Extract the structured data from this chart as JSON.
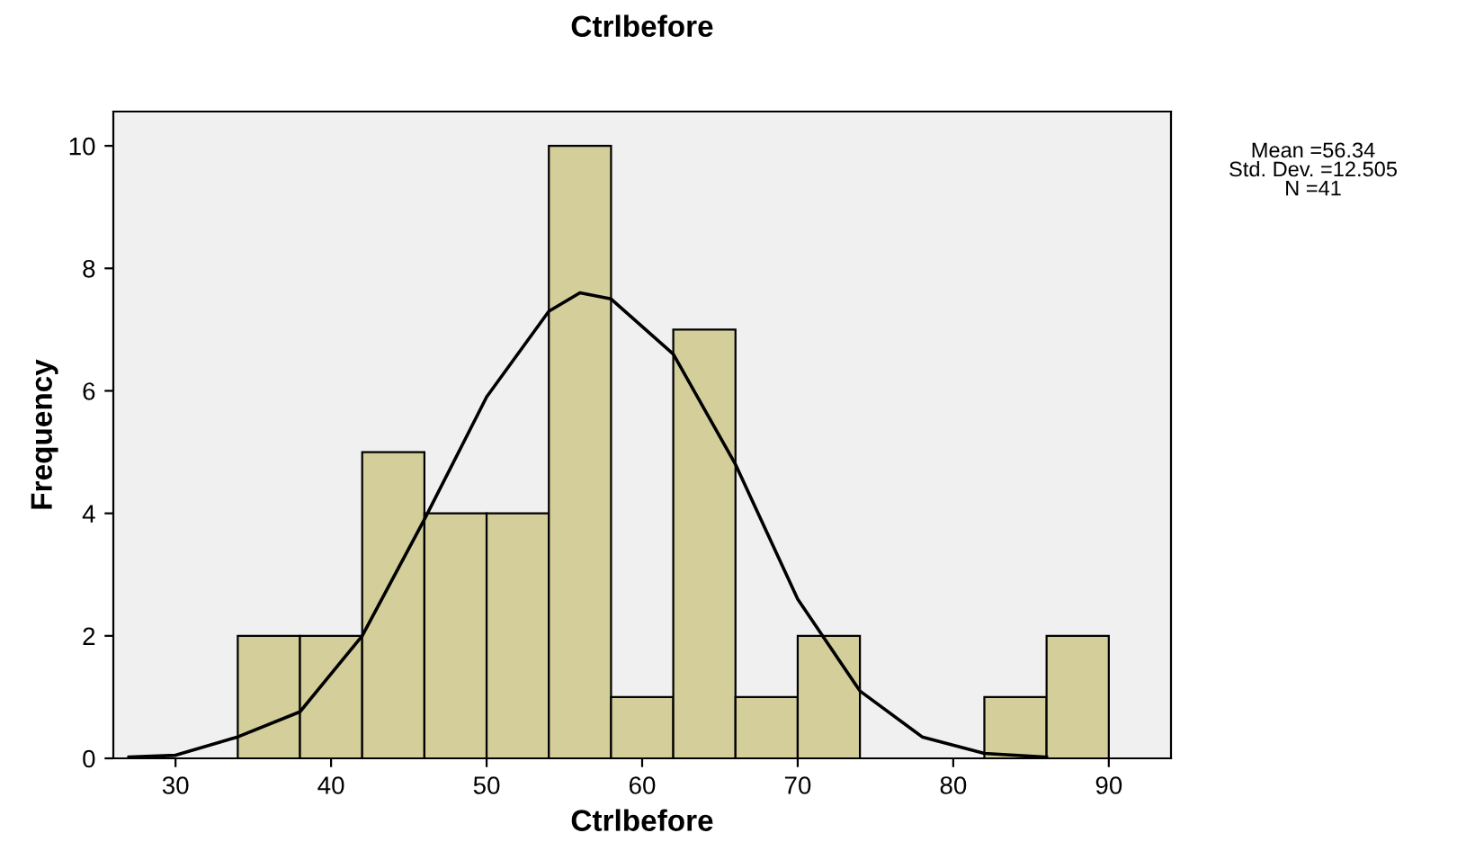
{
  "chart_data": {
    "type": "histogram",
    "title": "Ctrlbefore",
    "xlabel": "Ctrlbefore",
    "ylabel": "Frequency",
    "bins": [
      34,
      38,
      42,
      46,
      50,
      54,
      58,
      62,
      66,
      70,
      74,
      78,
      82,
      86,
      90
    ],
    "values": [
      2,
      2,
      5,
      4,
      4,
      10,
      1,
      7,
      1,
      2,
      0,
      0,
      1,
      2
    ],
    "color": "#d3ce9a",
    "series": [
      {
        "type": "line",
        "color": "#000000",
        "x": [
          27,
          30,
          34,
          38,
          42,
          46,
          50,
          54,
          56,
          58,
          62,
          66,
          70,
          74,
          78,
          82,
          86
        ],
        "values": [
          0.02,
          0.05,
          0.35,
          0.76,
          2.0,
          3.9,
          5.9,
          7.3,
          7.6,
          7.5,
          6.6,
          4.8,
          2.6,
          1.1,
          0.35,
          0.08,
          0.02
        ]
      }
    ],
    "xlim": [
      26,
      94
    ],
    "ylim": [
      0,
      10.56
    ],
    "xticks": [
      30,
      40,
      50,
      60,
      70,
      80,
      90
    ],
    "yticks": [
      0,
      2,
      4,
      6,
      8,
      10
    ],
    "grid": false,
    "legend": false,
    "annotations": [
      "Mean =56.34",
      "Std. Dev. =12.505",
      "N =41"
    ]
  }
}
